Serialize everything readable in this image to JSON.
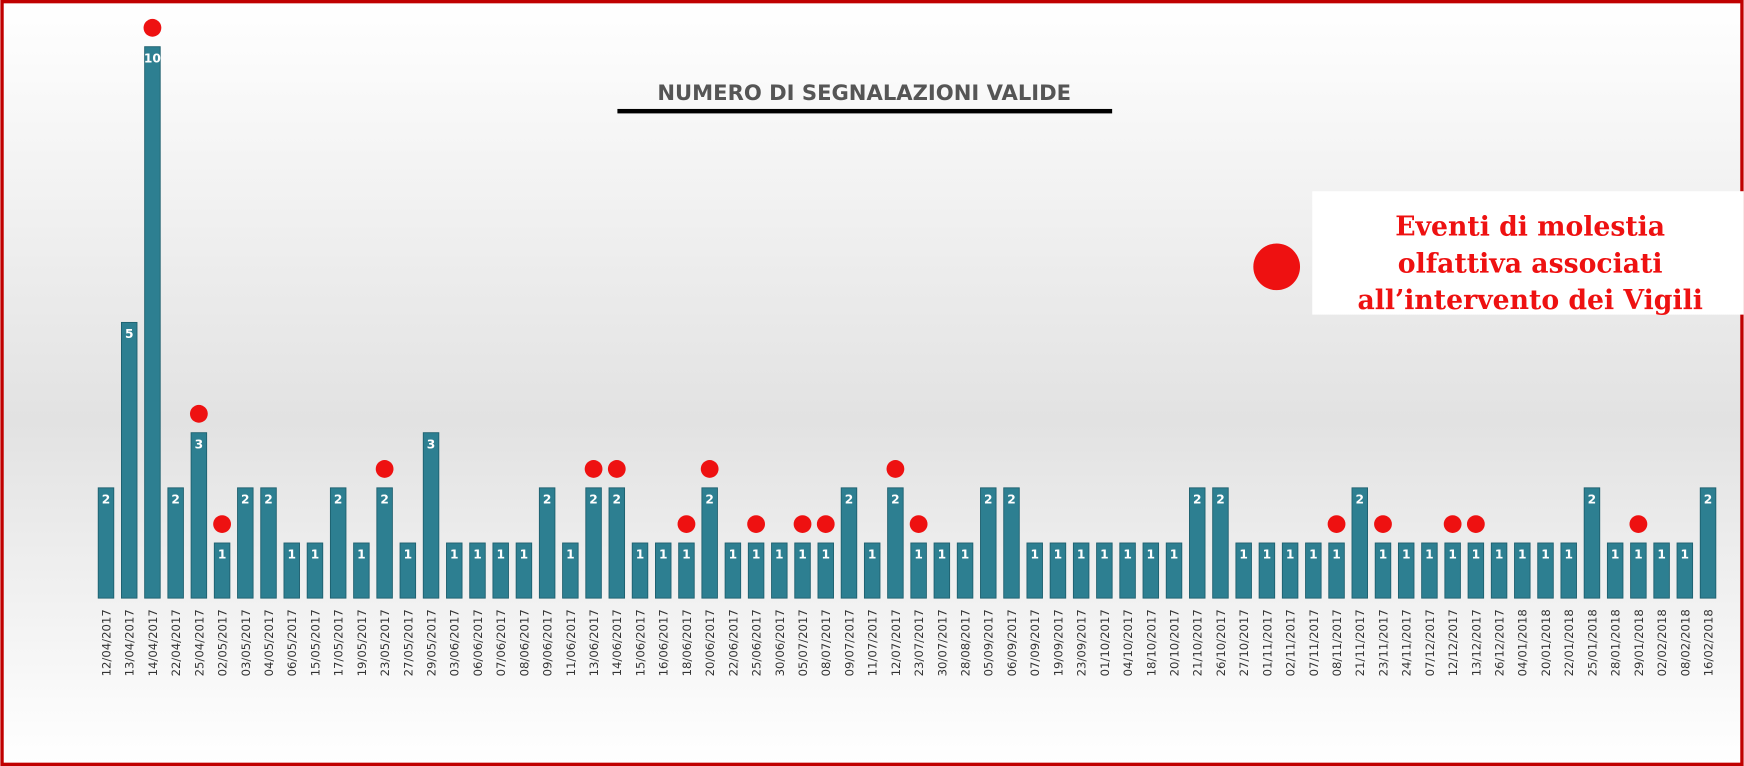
{
  "chart_data": {
    "type": "bar",
    "title": "NUMERO DI SEGNALAZIONI VALIDE",
    "color": "#2d7f91",
    "categories": [
      "12/04/2017",
      "13/04/2017",
      "14/04/2017",
      "22/04/2017",
      "25/04/2017",
      "02/05/2017",
      "03/05/2017",
      "04/05/2017",
      "06/05/2017",
      "15/05/2017",
      "17/05/2017",
      "19/05/2017",
      "23/05/2017",
      "27/05/2017",
      "29/05/2017",
      "03/06/2017",
      "06/06/2017",
      "07/06/2017",
      "08/06/2017",
      "09/06/2017",
      "11/06/2017",
      "13/06/2017",
      "14/06/2017",
      "15/06/2017",
      "16/06/2017",
      "18/06/2017",
      "20/06/2017",
      "22/06/2017",
      "25/06/2017",
      "30/06/2017",
      "05/07/2017",
      "08/07/2017",
      "09/07/2017",
      "11/07/2017",
      "12/07/2017",
      "23/07/2017",
      "30/07/2017",
      "28/08/2017",
      "05/09/2017",
      "06/09/2017",
      "07/09/2017",
      "19/09/2017",
      "23/09/2017",
      "01/10/2017",
      "04/10/2017",
      "18/10/2017",
      "20/10/2017",
      "21/10/2017",
      "26/10/2017",
      "27/10/2017",
      "01/11/2017",
      "02/11/2017",
      "07/11/2017",
      "08/11/2017",
      "21/11/2017",
      "23/11/2017",
      "24/11/2017",
      "07/12/2017",
      "12/12/2017",
      "13/12/2017",
      "26/12/2017",
      "04/01/2018",
      "20/01/2018",
      "22/01/2018",
      "25/01/2018",
      "28/01/2018",
      "29/01/2018",
      "02/02/2018",
      "08/02/2018",
      "16/02/2018"
    ],
    "values": [
      2,
      5,
      10,
      2,
      3,
      1,
      2,
      2,
      1,
      1,
      2,
      1,
      2,
      1,
      3,
      1,
      1,
      1,
      1,
      2,
      1,
      2,
      2,
      1,
      1,
      1,
      2,
      1,
      1,
      1,
      1,
      1,
      2,
      1,
      2,
      1,
      1,
      1,
      2,
      2,
      1,
      1,
      1,
      1,
      1,
      1,
      1,
      2,
      2,
      1,
      1,
      1,
      1,
      1,
      2,
      1,
      1,
      1,
      1,
      1,
      1,
      1,
      1,
      1,
      2,
      1,
      1,
      1,
      1,
      2
    ],
    "events": [
      false,
      false,
      true,
      false,
      true,
      true,
      false,
      false,
      false,
      false,
      false,
      false,
      true,
      false,
      false,
      false,
      false,
      false,
      false,
      false,
      false,
      true,
      true,
      false,
      false,
      true,
      true,
      false,
      true,
      false,
      true,
      true,
      false,
      false,
      true,
      true,
      false,
      false,
      false,
      false,
      false,
      false,
      false,
      false,
      false,
      false,
      false,
      false,
      false,
      false,
      false,
      false,
      false,
      true,
      false,
      true,
      false,
      false,
      true,
      true,
      false,
      false,
      false,
      false,
      false,
      false,
      true,
      false,
      false,
      false
    ],
    "legend": {
      "label": "Eventi di molestia olfattiva associati all’intervento dei Vigili",
      "color": "#ee1111"
    }
  }
}
